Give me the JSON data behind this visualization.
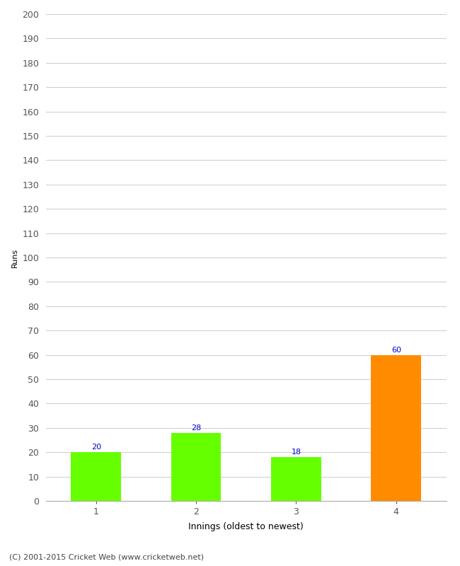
{
  "categories": [
    "1",
    "2",
    "3",
    "4"
  ],
  "values": [
    20,
    28,
    18,
    60
  ],
  "bar_colors": [
    "#66ff00",
    "#66ff00",
    "#66ff00",
    "#ff8c00"
  ],
  "bar_labels": [
    20,
    28,
    18,
    60
  ],
  "label_color": "#0000cc",
  "ylabel": "Runs",
  "xlabel": "Innings (oldest to newest)",
  "ylim": [
    0,
    200
  ],
  "yticks": [
    0,
    10,
    20,
    30,
    40,
    50,
    60,
    70,
    80,
    90,
    100,
    110,
    120,
    130,
    140,
    150,
    160,
    170,
    180,
    190,
    200
  ],
  "background_color": "#ffffff",
  "footer_text": "(C) 2001-2015 Cricket Web (www.cricketweb.net)",
  "grid_color": "#cccccc",
  "bar_width": 0.5,
  "label_fontsize": 8,
  "axis_fontsize": 9,
  "ylabel_fontsize": 8,
  "footer_fontsize": 8,
  "tick_color": "#555555",
  "spine_color": "#aaaaaa"
}
